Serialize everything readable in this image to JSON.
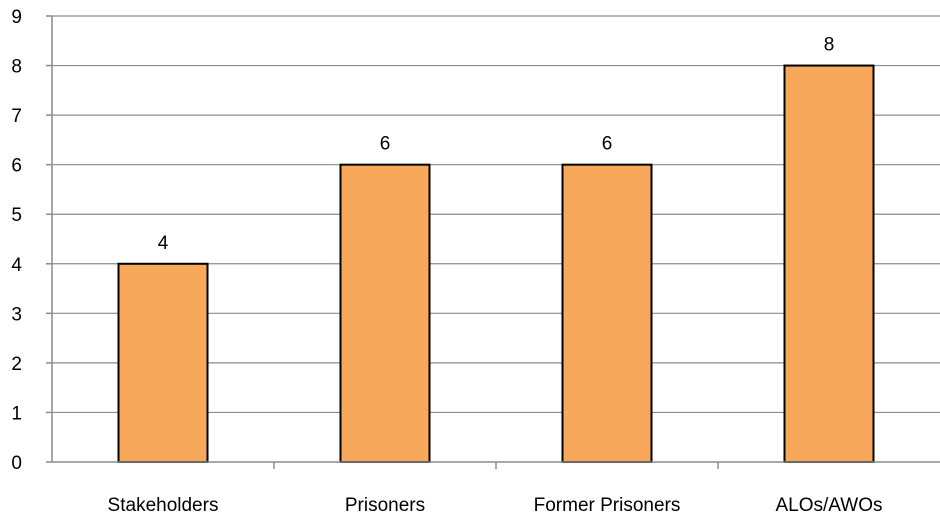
{
  "chart_data": {
    "type": "bar",
    "categories": [
      "Stakeholders",
      "Prisoners",
      "Former Prisoners",
      "ALOs/AWOs"
    ],
    "values": [
      4,
      6,
      6,
      8
    ],
    "data_labels": [
      "4",
      "6",
      "6",
      "8"
    ],
    "title": "",
    "xlabel": "",
    "ylabel": "",
    "ylim": [
      0,
      9
    ],
    "yticks": [
      0,
      1,
      2,
      3,
      4,
      5,
      6,
      7,
      8,
      9
    ],
    "grid": true,
    "legend": "none",
    "bar_color": "#F7A85A",
    "bar_edge_color": "#000000",
    "grid_color": "#8C8C8C"
  }
}
